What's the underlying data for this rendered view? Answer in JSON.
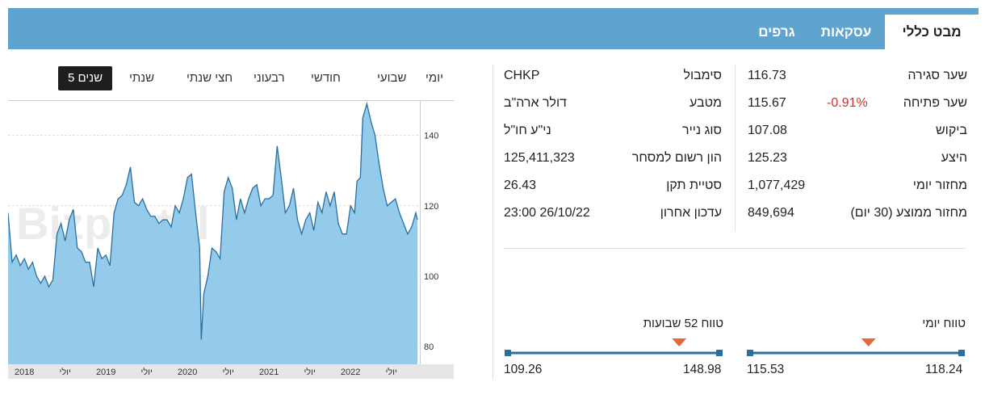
{
  "tabs": [
    {
      "label": "מבט כללי",
      "active": true
    },
    {
      "label": "עסקאות",
      "active": false
    },
    {
      "label": "גרפים",
      "active": false
    }
  ],
  "trading": [
    {
      "label": "שער סגירה",
      "value": "116.73"
    },
    {
      "label": "שער פתיחה",
      "value": "115.67",
      "change": "-0.91%"
    },
    {
      "label": "ביקוש",
      "value": "107.08"
    },
    {
      "label": "היצע",
      "value": "125.23"
    },
    {
      "label": "מחזור יומי",
      "value": "1,077,429"
    },
    {
      "label": "מחזור ממוצע (30 יום)",
      "value": "849,694"
    }
  ],
  "security": [
    {
      "label": "סימבול",
      "value": "CHKP"
    },
    {
      "label": "מטבע",
      "value": "דולר ארה\"ב"
    },
    {
      "label": "סוג נייר",
      "value": "ני\"ע חו\"ל"
    },
    {
      "label": "הון רשום למסחר",
      "value": "125,411,323"
    },
    {
      "label": "סטיית תקן",
      "value": "26.43"
    },
    {
      "label": "עדכון אחרון",
      "value": "23:00 26/10/22"
    }
  ],
  "periods": [
    "יומי",
    "שבועי",
    "חודשי",
    "רבעוני",
    "חצי שנתי",
    "שנתי",
    "5 שנים"
  ],
  "active_period": "5 שנים",
  "ranges": {
    "daily": {
      "title": "טווח יומי",
      "low": "115.53",
      "high": "118.24",
      "marker_fraction": 0.44
    },
    "week52": {
      "title": "טווח 52 שבועות",
      "low": "109.26",
      "high": "148.98",
      "marker_fraction": 0.19
    }
  },
  "colors": {
    "tabbar": "#5fa4cf",
    "line": "#2a6f9e",
    "fill": "#8ec8ea",
    "accent": "#e8673a",
    "range": "#2a6f9e",
    "negative": "#d0312d"
  },
  "chart_data": {
    "type": "area",
    "watermark": "Bizportal",
    "ylim": [
      75,
      150
    ],
    "yticks": [
      "140",
      "120",
      "100",
      "80"
    ],
    "ytick_values": [
      140,
      120,
      100,
      80
    ],
    "x_labels": [
      "2018",
      "יולי",
      "2019",
      "יולי",
      "2020",
      "יולי",
      "2021",
      "יולי",
      "2022",
      "יולי"
    ],
    "x_label_positions": [
      2018.0,
      2018.5,
      2019.0,
      2019.5,
      2020.0,
      2020.5,
      2021.0,
      2021.5,
      2022.0,
      2022.5
    ],
    "x_range": [
      2017.8,
      2022.85
    ],
    "series": [
      {
        "x": [
          2017.8,
          2017.85,
          2017.9,
          2017.95,
          2018.0,
          2018.05,
          2018.1,
          2018.15,
          2018.2,
          2018.25,
          2018.3,
          2018.35,
          2018.4,
          2018.45,
          2018.5,
          2018.55,
          2018.6,
          2018.65,
          2018.7,
          2018.75,
          2018.8,
          2018.85,
          2018.9,
          2018.95,
          2019.0,
          2019.05,
          2019.1,
          2019.15,
          2019.2,
          2019.25,
          2019.3,
          2019.35,
          2019.4,
          2019.45,
          2019.5,
          2019.55,
          2019.6,
          2019.65,
          2019.7,
          2019.75,
          2019.8,
          2019.85,
          2019.9,
          2019.95,
          2020.0,
          2020.05,
          2020.1,
          2020.15,
          2020.17,
          2020.2,
          2020.25,
          2020.3,
          2020.35,
          2020.4,
          2020.45,
          2020.5,
          2020.55,
          2020.6,
          2020.65,
          2020.7,
          2020.75,
          2020.8,
          2020.85,
          2020.9,
          2020.95,
          2021.0,
          2021.05,
          2021.1,
          2021.15,
          2021.2,
          2021.25,
          2021.3,
          2021.35,
          2021.4,
          2021.45,
          2021.5,
          2021.55,
          2021.6,
          2021.65,
          2021.7,
          2021.75,
          2021.8,
          2021.85,
          2021.9,
          2021.95,
          2022.0,
          2022.05,
          2022.08,
          2022.12,
          2022.15,
          2022.2,
          2022.25,
          2022.3,
          2022.35,
          2022.4,
          2022.45,
          2022.5,
          2022.55,
          2022.6,
          2022.65,
          2022.7,
          2022.75,
          2022.8,
          2022.82
        ],
        "y": [
          118,
          104,
          106,
          103,
          105,
          102,
          104,
          100,
          98,
          100,
          97,
          99,
          112,
          115,
          110,
          116,
          119,
          108,
          107,
          104,
          104,
          97,
          108,
          105,
          106,
          103,
          118,
          122,
          123,
          126,
          131,
          121,
          120,
          122,
          119,
          117,
          117,
          115,
          116,
          116,
          114,
          120,
          118,
          122,
          128,
          129,
          118,
          108,
          82,
          95,
          100,
          108,
          107,
          105,
          124,
          128,
          125,
          116,
          122,
          118,
          122,
          125,
          126,
          120,
          122,
          122,
          123,
          137,
          128,
          118,
          120,
          125,
          116,
          112,
          116,
          118,
          113,
          121,
          118,
          124,
          120,
          124,
          115,
          112,
          112,
          120,
          118,
          127,
          128,
          145,
          149,
          144,
          140,
          132,
          125,
          120,
          121,
          122,
          118,
          115,
          112,
          114,
          118,
          116
        ]
      }
    ]
  }
}
